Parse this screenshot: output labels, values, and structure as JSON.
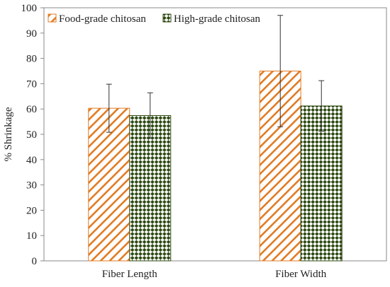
{
  "chart_data": {
    "type": "bar",
    "title": "",
    "xlabel": "",
    "ylabel": "% Shrinkage",
    "categories": [
      "Fiber Length",
      "Fiber Width"
    ],
    "series": [
      {
        "name": "Food-grade chitosan",
        "values": [
          60.3,
          75.0
        ],
        "error": [
          9.5,
          22.0
        ],
        "pattern": "diagonal-hatch",
        "color": "#e07b24"
      },
      {
        "name": "High-grade chitosan",
        "values": [
          57.4,
          61.2
        ],
        "error": [
          9.0,
          10.0
        ],
        "pattern": "checkerboard",
        "color": "#2e4a12"
      }
    ],
    "ylim": [
      0,
      100
    ],
    "yticks": [
      0,
      10,
      20,
      30,
      40,
      50,
      60,
      70,
      80,
      90,
      100
    ],
    "grid": false,
    "legend": "top-left"
  }
}
